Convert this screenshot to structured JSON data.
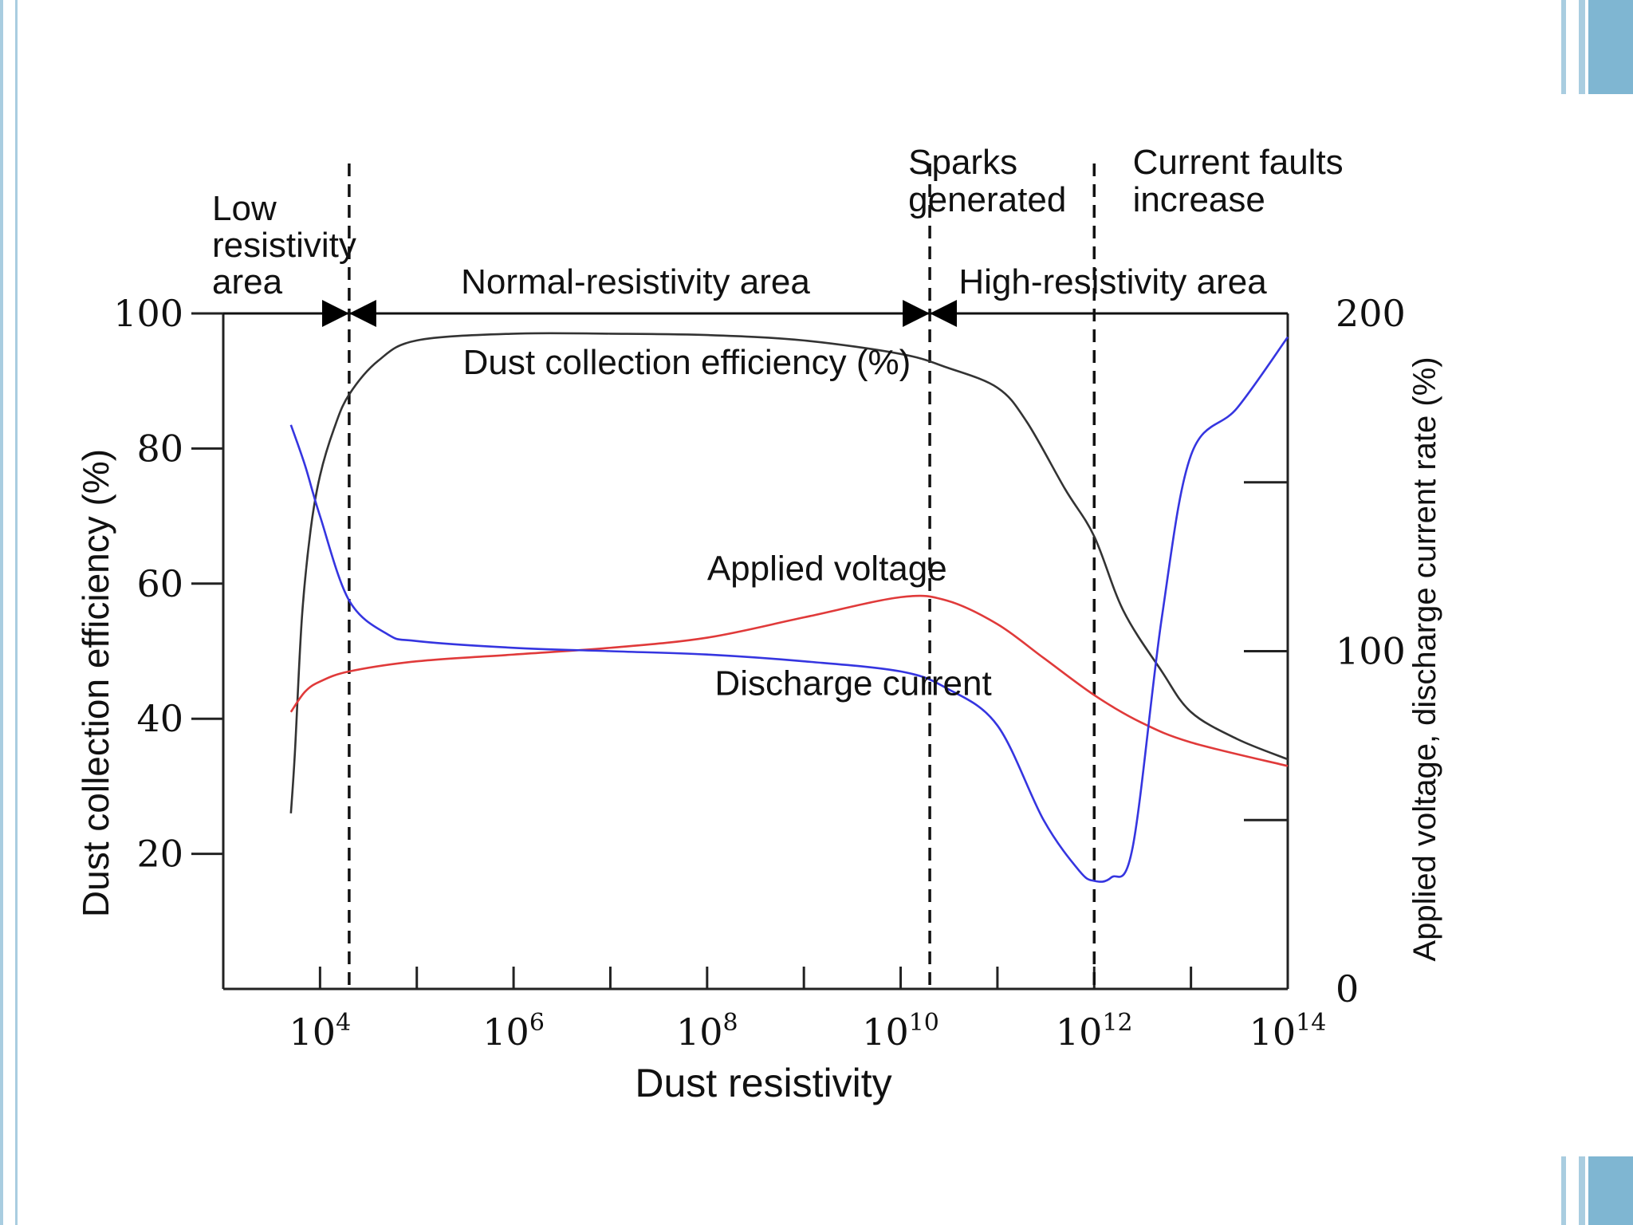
{
  "colors": {
    "accent": "#a9cde0",
    "accent_dark": "#5f9fc0",
    "efficiency": "#333333",
    "voltage": "#e03a3a",
    "current": "#3535e0"
  },
  "chart_data": {
    "type": "line",
    "xlabel": "Dust resistivity",
    "ylabel_left": "Dust collection efficiency (%)",
    "ylabel_right": "Applied voltage, discharge current rate (%)",
    "x_scale": "log",
    "xlim": [
      1000,
      100000000000000
    ],
    "ylim_left": [
      0,
      100
    ],
    "ylim_right": [
      0,
      200
    ],
    "x_ticks": [
      {
        "v": 10000,
        "base": "10",
        "exp": "4"
      },
      {
        "v": 1000000,
        "base": "10",
        "exp": "6"
      },
      {
        "v": 100000000,
        "base": "10",
        "exp": "8"
      },
      {
        "v": 10000000000,
        "base": "10",
        "exp": "10"
      },
      {
        "v": 1000000000000,
        "base": "10",
        "exp": "12"
      },
      {
        "v": 100000000000000,
        "base": "10",
        "exp": "14"
      }
    ],
    "x_minor_ticks": [
      100000,
      10000000,
      1000000000,
      100000000000,
      10000000000000
    ],
    "y_ticks_left": [
      "20",
      "40",
      "60",
      "80",
      "100"
    ],
    "y_ticks_right": [
      "0",
      "100",
      "200"
    ],
    "y_right_minor_ticks": [
      50,
      150
    ],
    "boundaries": [
      {
        "x": 20000,
        "full": true
      },
      {
        "x": 20000000000,
        "full": true
      },
      {
        "x": 1000000000000,
        "full": true
      }
    ],
    "regions": [
      {
        "label_lines": [
          "Low",
          "resistivity",
          "area"
        ],
        "from": 1000,
        "to": 20000
      },
      {
        "label_lines": [
          "Normal-resistivity area"
        ],
        "from": 20000,
        "to": 20000000000
      },
      {
        "label_lines": [
          "High-resistivity area"
        ],
        "from": 20000000000,
        "to": 100000000000000
      }
    ],
    "annotations": [
      {
        "lines": [
          "Sparks",
          "generated"
        ],
        "x": 12000000000,
        "y_lines": [
          157,
          190
        ]
      },
      {
        "lines": [
          "Current faults",
          "increase"
        ],
        "x": 2500000000000,
        "y_lines": [
          155,
          190
        ]
      }
    ],
    "series": [
      {
        "name": "Dust collection efficiency (%)",
        "axis": "left",
        "x": [
          5000,
          5500,
          6500,
          8000,
          10000,
          14000,
          20000,
          40000,
          100000,
          1000000,
          10000000,
          100000000,
          1000000000,
          10000000000,
          30000000000,
          100000000000,
          200000000000,
          500000000000,
          1000000000000,
          2000000000000,
          5000000000000,
          10000000000000,
          30000000000000,
          100000000000000
        ],
        "values": [
          26,
          35,
          55,
          68,
          76,
          83,
          88,
          93,
          96,
          97,
          97,
          96.8,
          96,
          94,
          92,
          89,
          84,
          74,
          67,
          56,
          47,
          41,
          37,
          34
        ]
      },
      {
        "name": "Applied voltage",
        "axis": "right",
        "x": [
          5000,
          7000,
          10000,
          20000,
          100000,
          1000000,
          10000000,
          100000000,
          1000000000,
          10000000000,
          30000000000,
          100000000000,
          300000000000,
          1000000000000,
          3000000000000,
          10000000000000,
          100000000000000
        ],
        "values": [
          82,
          88,
          91,
          94,
          97,
          99,
          101,
          104,
          110,
          116,
          115,
          108,
          98,
          87,
          79,
          73,
          66
        ]
      },
      {
        "name": "Discharge current",
        "axis": "right",
        "x": [
          5000,
          7000,
          10000,
          20000,
          50000,
          100000,
          1000000,
          10000000,
          100000000,
          1000000000,
          10000000000,
          30000000000,
          100000000000,
          300000000000,
          700000000000,
          1000000000000,
          1500000000000,
          2500000000000,
          5000000000000,
          10000000000000,
          30000000000000,
          100000000000000
        ],
        "values": [
          167,
          155,
          140,
          115,
          105,
          103,
          101,
          100,
          99,
          97,
          94,
          89,
          78,
          50,
          35,
          32,
          33,
          42,
          110,
          158,
          172,
          193
        ]
      }
    ],
    "series_labels": [
      {
        "series": 0,
        "x": 300000,
        "y": 91
      },
      {
        "series": 1,
        "x": 100000000,
        "y": 121
      },
      {
        "series": 2,
        "x": 120000000,
        "y": 87
      }
    ]
  }
}
